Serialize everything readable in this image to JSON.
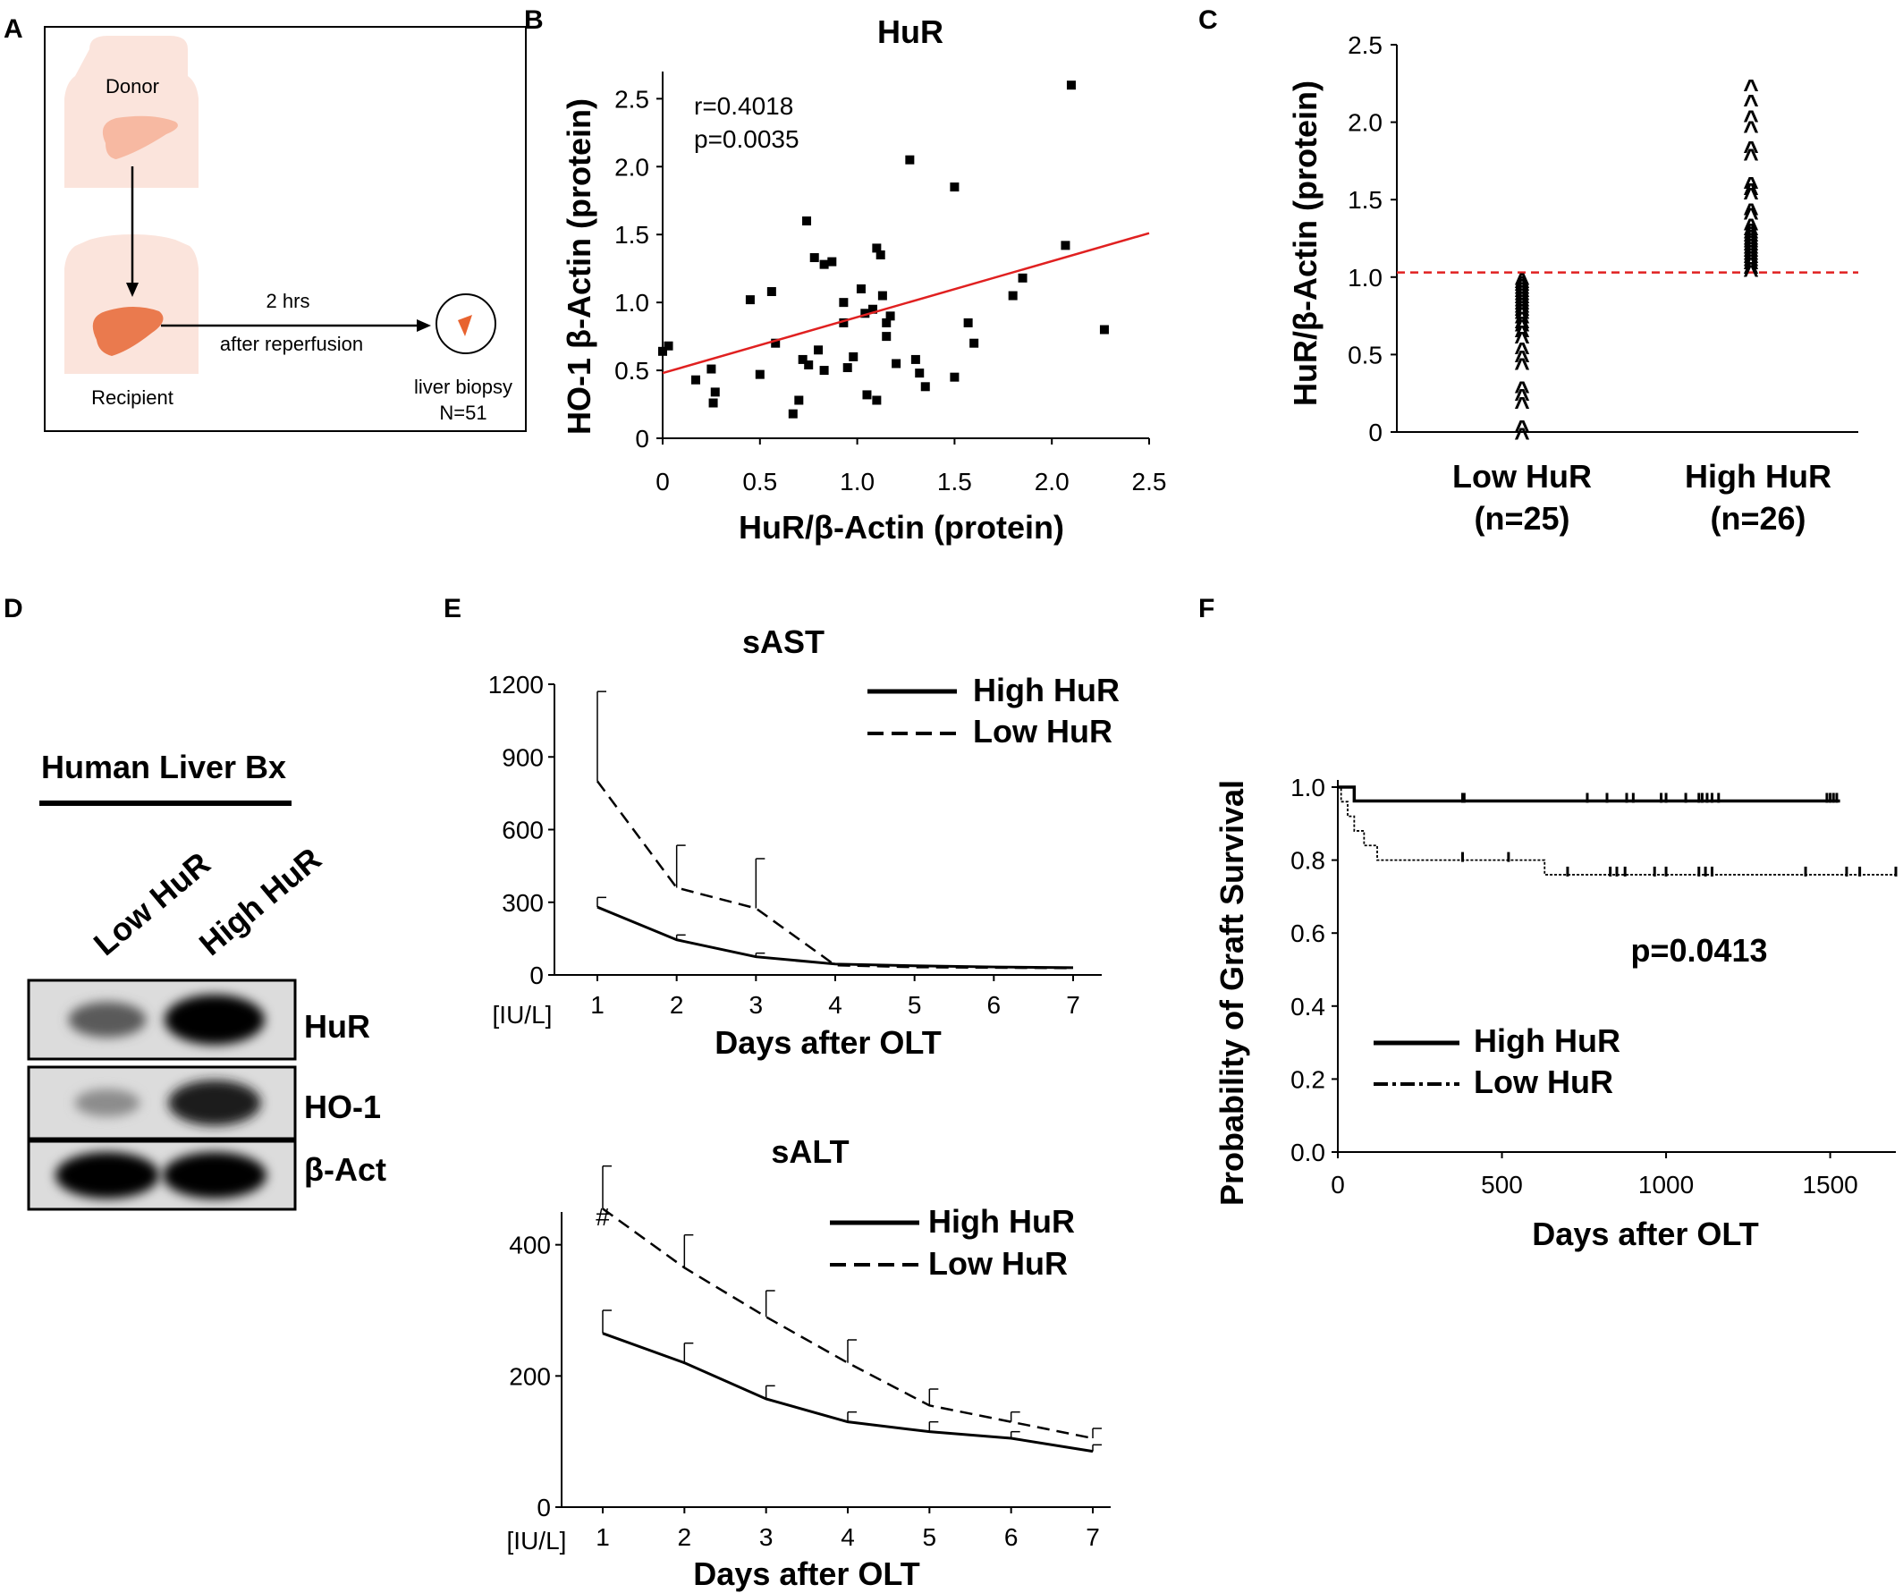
{
  "panels": {
    "A": {
      "label": "A",
      "donor": "Donor",
      "recipient": "Recipient",
      "time": "2 hrs",
      "timing": "after reperfusion",
      "biopsy": "liver biopsy",
      "n": "N=51",
      "colors": {
        "skin": "#fbe4dc",
        "donor_liver": "#f7b9a2",
        "recipient_liver": "#ea7a4e",
        "biopsy": "#e8632f"
      }
    },
    "B": {
      "label": "B"
    },
    "C": {
      "label": "C"
    },
    "D": {
      "label": "D",
      "title": "Human Liver Bx",
      "lanes": [
        "Low HuR",
        "High HuR"
      ],
      "rows": [
        "HuR",
        "HO-1",
        "β-Act"
      ],
      "band_intensity": [
        [
          0.55,
          1.0
        ],
        [
          0.3,
          0.85
        ],
        [
          1.0,
          1.0
        ]
      ]
    },
    "E": {
      "label": "E"
    },
    "F": {
      "label": "F"
    }
  },
  "chart_data": [
    {
      "id": "B",
      "type": "scatter",
      "title": "HuR",
      "xlabel": "HuR/β-Actin (protein)",
      "ylabel": "HO-1 β-Actin (protein)",
      "xlim": [
        0,
        2.5
      ],
      "ylim": [
        0,
        2.7
      ],
      "xticks": [
        "0",
        "0.5",
        "1.0",
        "1.5",
        "2.0",
        "2.5"
      ],
      "yticks": [
        "0",
        "0.5",
        "1.0",
        "1.5",
        "2.0",
        "2.5"
      ],
      "annotations": [
        "r=0.4018",
        "p=0.0035"
      ],
      "fit": {
        "x": [
          0,
          2.5
        ],
        "y": [
          0.48,
          1.51
        ],
        "color": "#e02020"
      },
      "points": [
        [
          0.03,
          0.68
        ],
        [
          0.0,
          0.64
        ],
        [
          0.17,
          0.43
        ],
        [
          0.25,
          0.51
        ],
        [
          0.26,
          0.26
        ],
        [
          0.27,
          0.34
        ],
        [
          0.45,
          1.02
        ],
        [
          0.5,
          0.47
        ],
        [
          0.56,
          1.08
        ],
        [
          0.58,
          0.7
        ],
        [
          0.67,
          0.18
        ],
        [
          0.7,
          0.28
        ],
        [
          0.72,
          0.58
        ],
        [
          0.75,
          0.54
        ],
        [
          0.74,
          1.6
        ],
        [
          0.78,
          1.33
        ],
        [
          0.8,
          0.65
        ],
        [
          0.83,
          1.28
        ],
        [
          0.83,
          0.5
        ],
        [
          0.87,
          1.3
        ],
        [
          0.93,
          1.0
        ],
        [
          0.93,
          0.85
        ],
        [
          0.95,
          0.52
        ],
        [
          0.98,
          0.6
        ],
        [
          1.02,
          1.1
        ],
        [
          1.04,
          0.92
        ],
        [
          1.05,
          0.32
        ],
        [
          1.08,
          0.95
        ],
        [
          1.1,
          0.28
        ],
        [
          1.1,
          1.4
        ],
        [
          1.12,
          1.35
        ],
        [
          1.13,
          1.05
        ],
        [
          1.15,
          0.75
        ],
        [
          1.15,
          0.85
        ],
        [
          1.17,
          0.9
        ],
        [
          1.2,
          0.55
        ],
        [
          1.27,
          2.05
        ],
        [
          1.3,
          0.58
        ],
        [
          1.32,
          0.48
        ],
        [
          1.35,
          0.38
        ],
        [
          1.5,
          0.45
        ],
        [
          1.5,
          1.85
        ],
        [
          1.57,
          0.85
        ],
        [
          1.6,
          0.7
        ],
        [
          1.8,
          1.05
        ],
        [
          1.85,
          1.18
        ],
        [
          2.07,
          1.42
        ],
        [
          2.1,
          2.6
        ],
        [
          2.27,
          0.8
        ]
      ]
    },
    {
      "id": "C",
      "type": "scatter",
      "ylabel": "HuR/β-Actin (protein)",
      "ylim": [
        0,
        2.5
      ],
      "yticks": [
        "0",
        "0.5",
        "1.0",
        "1.5",
        "2.0",
        "2.5"
      ],
      "categories": [
        "Low HuR",
        "High HuR"
      ],
      "ns": [
        "(n=25)",
        "(n=26)"
      ],
      "threshold": 1.03,
      "threshold_color": "#e02020",
      "marker": "^",
      "low_values": [
        0.0,
        0.05,
        0.2,
        0.25,
        0.3,
        0.45,
        0.5,
        0.55,
        0.62,
        0.66,
        0.7,
        0.72,
        0.75,
        0.78,
        0.8,
        0.82,
        0.84,
        0.86,
        0.88,
        0.9,
        0.92,
        0.94,
        0.96,
        0.98,
        1.0
      ],
      "high_values": [
        1.05,
        1.07,
        1.1,
        1.12,
        1.14,
        1.16,
        1.18,
        1.2,
        1.22,
        1.24,
        1.26,
        1.28,
        1.3,
        1.32,
        1.35,
        1.42,
        1.45,
        1.55,
        1.58,
        1.62,
        1.8,
        1.85,
        1.98,
        2.05,
        2.15,
        2.25
      ]
    },
    {
      "id": "E-sAST",
      "type": "line",
      "title": "sAST",
      "xlabel": "Days after OLT",
      "unit": "[IU/L]",
      "x": [
        1,
        2,
        3,
        4,
        5,
        6,
        7
      ],
      "ylim": [
        0,
        1200
      ],
      "yticks": [
        "0",
        "300",
        "600",
        "900",
        "1200"
      ],
      "series": [
        {
          "name": "High HuR",
          "values": [
            280,
            145,
            75,
            45,
            38,
            33,
            30
          ],
          "errors": [
            40,
            20,
            15,
            0,
            0,
            0,
            0
          ],
          "style": "solid"
        },
        {
          "name": "Low HuR",
          "values": [
            800,
            360,
            275,
            40,
            32,
            30,
            28
          ],
          "errors": [
            370,
            175,
            205,
            0,
            0,
            0,
            0
          ],
          "style": "dashed"
        }
      ]
    },
    {
      "id": "E-sALT",
      "type": "line",
      "title": "sALT",
      "xlabel": "Days after OLT",
      "unit": "[IU/L]",
      "x": [
        1,
        2,
        3,
        4,
        5,
        6,
        7
      ],
      "ylim": [
        0,
        600
      ],
      "yticks": [
        "0",
        "200",
        "400"
      ],
      "marker_label": "#",
      "series": [
        {
          "name": "High HuR",
          "values": [
            265,
            220,
            165,
            130,
            115,
            105,
            85
          ],
          "errors": [
            35,
            30,
            20,
            15,
            15,
            10,
            10
          ],
          "style": "solid"
        },
        {
          "name": "Low HuR",
          "values": [
            455,
            365,
            290,
            220,
            155,
            130,
            105
          ],
          "errors": [
            65,
            50,
            40,
            35,
            25,
            15,
            15
          ],
          "style": "dashed"
        }
      ]
    },
    {
      "id": "F",
      "type": "line",
      "xlabel": "Days after OLT",
      "ylabel": "Probability of Graft Survival",
      "xlim": [
        0,
        1700
      ],
      "ylim": [
        0,
        1.0
      ],
      "xticks": [
        "0",
        "500",
        "1000",
        "1500"
      ],
      "yticks": [
        "0.0",
        "0.2",
        "0.4",
        "0.6",
        "0.8",
        "1.0"
      ],
      "annotation": "p=0.0413",
      "series": [
        {
          "name": "High HuR",
          "style": "solid",
          "steps": [
            [
              0,
              1.0
            ],
            [
              50,
              1.0
            ],
            [
              50,
              0.962
            ],
            [
              1530,
              0.962
            ]
          ],
          "censored": [
            380,
            385,
            760,
            820,
            880,
            900,
            985,
            1000,
            1060,
            1100,
            1110,
            1125,
            1140,
            1160,
            1490,
            1500,
            1510,
            1520
          ]
        },
        {
          "name": "Low HuR",
          "style": "dotted",
          "steps": [
            [
              0,
              1.0
            ],
            [
              10,
              1.0
            ],
            [
              10,
              0.96
            ],
            [
              30,
              0.96
            ],
            [
              30,
              0.92
            ],
            [
              50,
              0.92
            ],
            [
              50,
              0.88
            ],
            [
              80,
              0.88
            ],
            [
              80,
              0.84
            ],
            [
              120,
              0.84
            ],
            [
              120,
              0.8
            ],
            [
              630,
              0.8
            ],
            [
              630,
              0.76
            ],
            [
              1700,
              0.76
            ]
          ],
          "censored": [
            380,
            520,
            700,
            830,
            850,
            875,
            965,
            1000,
            1100,
            1120,
            1140,
            1425,
            1550,
            1590,
            1700
          ]
        }
      ]
    }
  ]
}
